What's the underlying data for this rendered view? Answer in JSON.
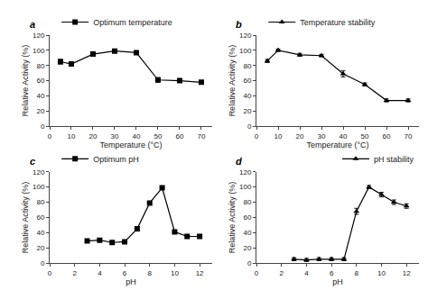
{
  "chart_data": [
    {
      "type": "line",
      "x": [
        5,
        10,
        20,
        30,
        40,
        50,
        60,
        70
      ],
      "series": [
        {
          "name": "Optimum temperature",
          "color": "#000000",
          "marker": "square",
          "values": [
            85,
            82,
            95,
            99,
            97,
            61,
            60,
            58
          ],
          "error": [
            3,
            2,
            2,
            1.5,
            1.5,
            3,
            2,
            2
          ]
        }
      ],
      "xlabel": "Temperature (°C)",
      "ylabel": "Relative Activity (%)",
      "xlim": [
        0,
        75
      ],
      "ylim": [
        0,
        120
      ],
      "xticks": [
        0,
        10,
        20,
        30,
        40,
        50,
        60,
        70
      ],
      "yticks": [
        0,
        20,
        40,
        60,
        80,
        100,
        120
      ],
      "legend": "upper left",
      "grid": false,
      "annotations": [
        {
          "text": "a"
        }
      ]
    },
    {
      "type": "line",
      "x": [
        5,
        10,
        20,
        30,
        40,
        50,
        60,
        70
      ],
      "series": [
        {
          "name": "Temperature stability",
          "color": "#000000",
          "marker": "triangle",
          "values": [
            86,
            100,
            94,
            93,
            69,
            55,
            34,
            34
          ],
          "error": [
            2,
            1.5,
            2,
            1.5,
            4,
            2,
            2,
            2
          ]
        }
      ],
      "xlabel": "Temperature (°C)",
      "ylabel": "Relative Activity (%)",
      "xlim": [
        0,
        75
      ],
      "ylim": [
        0,
        120
      ],
      "xticks": [
        0,
        10,
        20,
        30,
        40,
        50,
        60,
        70
      ],
      "yticks": [
        0,
        20,
        40,
        60,
        80,
        100,
        120
      ],
      "legend": "upper left",
      "grid": false,
      "annotations": [
        {
          "text": "b"
        }
      ]
    },
    {
      "type": "line",
      "x": [
        3,
        4,
        5,
        6,
        7,
        8,
        9,
        10,
        11,
        12
      ],
      "series": [
        {
          "name": "Optimum pH",
          "color": "#000000",
          "marker": "square",
          "values": [
            29,
            30,
            27,
            28,
            45,
            79,
            99,
            41,
            35,
            35
          ],
          "error": [
            2,
            2,
            2,
            2,
            3,
            2,
            2,
            2,
            2,
            2
          ]
        }
      ],
      "xlabel": "pH",
      "ylabel": "Relative Activity (%)",
      "xlim": [
        0,
        13
      ],
      "ylim": [
        0,
        120
      ],
      "xticks": [
        0,
        2,
        4,
        6,
        8,
        10,
        12
      ],
      "yticks": [
        0,
        20,
        40,
        60,
        80,
        100,
        120
      ],
      "legend": "upper left",
      "grid": false,
      "annotations": [
        {
          "text": "c"
        }
      ]
    },
    {
      "type": "line",
      "x": [
        3,
        4,
        5,
        6,
        7,
        8,
        9,
        10,
        11,
        12
      ],
      "series": [
        {
          "name": "pH stability",
          "color": "#000000",
          "marker": "triangle",
          "values": [
            5,
            4,
            5,
            5,
            5,
            68,
            100,
            90,
            80,
            75
          ],
          "error": [
            2,
            2,
            2,
            2,
            2,
            4,
            2,
            3,
            3,
            3
          ]
        }
      ],
      "xlabel": "pH",
      "ylabel": "Relative Activity (%)",
      "xlim": [
        0,
        13
      ],
      "ylim": [
        0,
        120
      ],
      "xticks": [
        0,
        2,
        4,
        6,
        8,
        10,
        12
      ],
      "yticks": [
        0,
        20,
        40,
        60,
        80,
        100,
        120
      ],
      "legend": "upper right",
      "grid": false,
      "annotations": [
        {
          "text": "d"
        }
      ]
    }
  ]
}
